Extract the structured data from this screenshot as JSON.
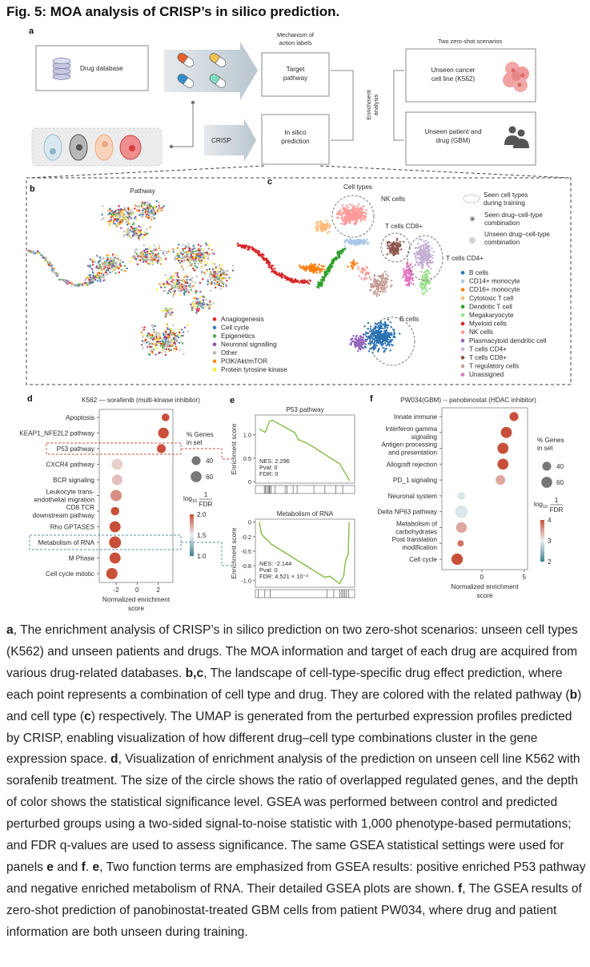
{
  "title": "Fig. 5: MOA analysis of CRISP’s in silico prediction.",
  "panel_a": {
    "label": "a",
    "drug_database": "Drug database",
    "moa_label": [
      "Mechanism of",
      "action labels"
    ],
    "target_pathway": [
      "Target",
      "pathway"
    ],
    "crisp": "CRISP",
    "in_silico": [
      "In silico",
      "prediction"
    ],
    "enrichment": [
      "Enrichment",
      "analysis"
    ],
    "scenarios_title": "Two zero-shot scenarios",
    "scenario_cell_line": [
      "Unseen cancer",
      "cell line (K562)"
    ],
    "scenario_patient": [
      "Unseen patient and",
      "drug (GBM)"
    ]
  },
  "panel_b": {
    "label": "b",
    "title": "Pathway",
    "legend": [
      {
        "label": "Anagiogenesis",
        "color": "#e02a26"
      },
      {
        "label": "Cell cycle",
        "color": "#3f7fbf"
      },
      {
        "label": "Epigenetics",
        "color": "#4fae4a"
      },
      {
        "label": "Neuronal signalling",
        "color": "#9550a8"
      },
      {
        "label": "Other",
        "color": "#bdbdbd"
      },
      {
        "label": "PI3K/Akt/mTOR",
        "color": "#ff8a12"
      },
      {
        "label": "Protein tyrosine kinase",
        "color": "#f7ea3a"
      }
    ]
  },
  "panel_c": {
    "label": "c",
    "title": "Cell types",
    "annotations": {
      "nk": "NK cells",
      "cd8": "T cells CD8+",
      "cd4": "T cells CD4+",
      "b": "B cells"
    },
    "marker_legend": {
      "seen_types": [
        "Seen cell types",
        "during training"
      ],
      "seen_combo": [
        "Seen drug–cell-type",
        "combination"
      ],
      "unseen_combo": [
        "Unseen drug–cell-type",
        "combination"
      ]
    },
    "legend": [
      {
        "label": "B cells",
        "color": "#2a73b2"
      },
      {
        "label": "CD14+ monocyte",
        "color": "#aec7e8"
      },
      {
        "label": "CD16+ monocyte",
        "color": "#ff7f0e"
      },
      {
        "label": "Cytotoxic T cell",
        "color": "#ffbb78"
      },
      {
        "label": "Dendritic T cell",
        "color": "#2ca02c"
      },
      {
        "label": "Megakaryocyte",
        "color": "#98df8a"
      },
      {
        "label": "Myeloid cells",
        "color": "#d62728"
      },
      {
        "label": "NK cells",
        "color": "#ff9896"
      },
      {
        "label": "Plasmacytoid dendritic cell",
        "color": "#9467bd"
      },
      {
        "label": "T cells CD4+",
        "color": "#c5b0d5"
      },
      {
        "label": "T cells CD8+",
        "color": "#8c564b"
      },
      {
        "label": "T regulatory cells",
        "color": "#c49c94"
      },
      {
        "label": "Unassigned",
        "color": "#e377c2"
      }
    ]
  },
  "chart_data": [
    {
      "id": "d",
      "panel_label": "d",
      "type": "scatter",
      "title": "K562 — sorafenib (multi-kinase inhibitor)",
      "xlabel": [
        "Normalized enrichment",
        "score"
      ],
      "xlim": [
        -3.6,
        3.4
      ],
      "xticks": [
        -2,
        0,
        2
      ],
      "size_legend_title": [
        "% Genes",
        "in set"
      ],
      "size_legend": [
        40,
        60
      ],
      "color_legend_title": "log10 1/FDR",
      "color_range": [
        1.0,
        2.0
      ],
      "color_ticks": [
        "2.0",
        "1.5",
        "1.0"
      ],
      "rows": [
        {
          "term": [
            "Apoptosis"
          ],
          "nes": 2.7,
          "pct_genes": 30,
          "log10_inv_fdr": 2.0
        },
        {
          "term": [
            "KEAP1_NFE2L2 pathway"
          ],
          "nes": 2.5,
          "pct_genes": 58,
          "log10_inv_fdr": 2.0
        },
        {
          "term": [
            "P53 pathway"
          ],
          "nes": 2.3,
          "pct_genes": 40,
          "log10_inv_fdr": 2.0
        },
        {
          "term": [
            "CXCR4 pathway"
          ],
          "nes": -1.9,
          "pct_genes": 62,
          "log10_inv_fdr": 1.6
        },
        {
          "term": [
            "BCR signaling"
          ],
          "nes": -1.9,
          "pct_genes": 56,
          "log10_inv_fdr": 1.65
        },
        {
          "term": [
            "Leukocyte trans-",
            "endothelial migration"
          ],
          "nes": -2.0,
          "pct_genes": 64,
          "log10_inv_fdr": 1.8
        },
        {
          "term": [
            "CD8 TCR",
            "downstream pathway"
          ],
          "nes": -2.1,
          "pct_genes": 36,
          "log10_inv_fdr": 2.0
        },
        {
          "term": [
            "Rho GPTASES"
          ],
          "nes": -2.1,
          "pct_genes": 62,
          "log10_inv_fdr": 2.0
        },
        {
          "term": [
            "Metabolism of RNA"
          ],
          "nes": -2.1,
          "pct_genes": 72,
          "log10_inv_fdr": 2.0
        },
        {
          "term": [
            "M Phase"
          ],
          "nes": -2.1,
          "pct_genes": 62,
          "log10_inv_fdr": 2.0
        },
        {
          "term": [
            "Cell cycle mitotic"
          ],
          "nes": -2.4,
          "pct_genes": 64,
          "log10_inv_fdr": 2.0
        }
      ]
    },
    {
      "id": "e1",
      "panel_label": "e",
      "type": "line",
      "title": "P53 pathway",
      "ylabel": "Enrichment score",
      "ylim": [
        -0.03,
        1.42
      ],
      "yticks": [
        {
          "value": 1.0,
          "label": "1.0"
        },
        {
          "value": 0.5,
          "label": "0.5"
        },
        {
          "value": 0,
          "label": "0"
        }
      ],
      "stats": [
        "NES: 2.296",
        "Pval: 0",
        "FDR: 0"
      ],
      "curve": [
        [
          0.04,
          1.12
        ],
        [
          0.1,
          1.05
        ],
        [
          0.14,
          1.28
        ],
        [
          0.17,
          1.31
        ],
        [
          0.4,
          1.04
        ],
        [
          0.43,
          0.9
        ],
        [
          0.52,
          0.82
        ],
        [
          0.6,
          0.72
        ],
        [
          0.7,
          0.58
        ],
        [
          0.76,
          0.5
        ],
        [
          0.85,
          0.38
        ],
        [
          0.88,
          0.27
        ],
        [
          0.95,
          0.02
        ]
      ],
      "hits": [
        0.09,
        0.1,
        0.115,
        0.13,
        0.14,
        0.145,
        0.16,
        0.2,
        0.3,
        0.32,
        0.38,
        0.42,
        0.59,
        0.7,
        0.81,
        0.88
      ]
    },
    {
      "id": "e2",
      "type": "line",
      "title": "Metabolism of RNA",
      "ylabel": "Enrichment score",
      "ylim": [
        -1.12,
        0.05
      ],
      "yticks": [
        {
          "value": 0,
          "label": "0"
        },
        {
          "value": -0.25,
          "label": "-0.2"
        },
        {
          "value": -0.5,
          "label": "-0.5"
        },
        {
          "value": -0.75,
          "label": "-0.8"
        },
        {
          "value": -1.0,
          "label": "-1.0"
        }
      ],
      "stats": [
        "NES: -2.144",
        "Pval: 0",
        "FDR: 4.521 × 10⁻³"
      ],
      "curve": [
        [
          0.04,
          0
        ],
        [
          0.06,
          -0.2
        ],
        [
          0.095,
          -0.27
        ],
        [
          0.135,
          -0.33
        ],
        [
          0.16,
          -0.38
        ],
        [
          0.7,
          -0.95
        ],
        [
          0.75,
          -0.93
        ],
        [
          0.85,
          -1.06
        ],
        [
          0.865,
          -1.0
        ],
        [
          0.89,
          -0.93
        ],
        [
          0.905,
          -0.7
        ],
        [
          0.92,
          -0.61
        ],
        [
          0.935,
          -0.56
        ],
        [
          0.945,
          0
        ]
      ],
      "hits": [
        0.03,
        0.095,
        0.15,
        0.72,
        0.79,
        0.85,
        0.87,
        0.885,
        0.9,
        0.915,
        0.94
      ]
    },
    {
      "id": "f",
      "panel_label": "f",
      "type": "scatter",
      "title": "PW034(GBM) -- panobinostat (HDAC inhibitor)",
      "xlabel": [
        "Normalized enrichment",
        "score"
      ],
      "xlim": [
        -4.7,
        5.4
      ],
      "xticks": [
        0,
        5
      ],
      "size_legend_title": [
        "% Genes",
        "in set"
      ],
      "size_legend": [
        40,
        60
      ],
      "color_legend_title": "log10 1/FDR",
      "color_range": [
        2,
        4
      ],
      "color_ticks": [
        "4",
        "3",
        "2"
      ],
      "rows": [
        {
          "term": [
            "Innate immune"
          ],
          "nes": 3.8,
          "pct_genes": 40,
          "log10_inv_fdr": 4.0
        },
        {
          "term": [
            "Interferon gamma",
            "signaling"
          ],
          "nes": 2.9,
          "pct_genes": 62,
          "log10_inv_fdr": 4.0
        },
        {
          "term": [
            "Antigen processing",
            "and presentation"
          ],
          "nes": 2.5,
          "pct_genes": 62,
          "log10_inv_fdr": 4.0
        },
        {
          "term": [
            "Allograft rejection"
          ],
          "nes": 2.5,
          "pct_genes": 60,
          "log10_inv_fdr": 4.0
        },
        {
          "term": [
            "PD_1 signaling"
          ],
          "nes": 2.2,
          "pct_genes": 46,
          "log10_inv_fdr": 3.45
        },
        {
          "term": [
            "Neuronal system"
          ],
          "nes": -2.4,
          "pct_genes": 30,
          "log10_inv_fdr": 2.9
        },
        {
          "term": [
            "Delta NP63 pathway"
          ],
          "nes": -2.4,
          "pct_genes": 80,
          "log10_inv_fdr": 2.9
        },
        {
          "term": [
            "Metabolism of",
            "carbohydrates"
          ],
          "nes": -2.4,
          "pct_genes": 58,
          "log10_inv_fdr": 3.45
        },
        {
          "term": [
            "Post translation",
            "modification"
          ],
          "nes": -2.5,
          "pct_genes": 20,
          "log10_inv_fdr": 3.8
        },
        {
          "term": [
            "Cell cycle"
          ],
          "nes": -2.9,
          "pct_genes": 66,
          "log10_inv_fdr": 4.0
        }
      ]
    }
  ],
  "caption": [
    {
      "text": "a",
      "bold": true
    },
    {
      "text": ", The enrichment analysis of CRISP’s in silico prediction on two zero-shot scenarios: unseen cell types (K562) and unseen patients and drugs. The MOA information and target of each drug are acquired from various drug-related databases. "
    },
    {
      "text": "b,c",
      "bold": true
    },
    {
      "text": ", The landscape of cell-type-specific drug effect prediction, where each point represents a combination of cell type and drug. They are colored with the related pathway ("
    },
    {
      "text": "b",
      "bold": true
    },
    {
      "text": ") and cell type ("
    },
    {
      "text": "c",
      "bold": true
    },
    {
      "text": ") respectively. The UMAP is generated from the perturbed expression profiles predicted by CRISP, enabling visualization of how different drug–cell type combinations cluster in the gene expression space. "
    },
    {
      "text": "d",
      "bold": true
    },
    {
      "text": ", Visualization of enrichment analysis of the prediction on unseen cell line K562 with sorafenib treatment. The size of the circle shows the ratio of overlapped regulated genes, and the depth of color shows the statistical significance level. GSEA was performed between control and predicted perturbed groups using a two-sided signal-to-noise statistic with 1,000 phenotype-based permutations; and FDR q-values are used to assess significance. The same GSEA statistical settings were used for panels "
    },
    {
      "text": "e",
      "bold": true
    },
    {
      "text": " and "
    },
    {
      "text": "f",
      "bold": true
    },
    {
      "text": ". "
    },
    {
      "text": "e",
      "bold": true
    },
    {
      "text": ", Two function terms are emphasized from GSEA results: positive enriched P53 pathway and negative enriched metabolism of RNA. Their detailed GSEA plots are shown. "
    },
    {
      "text": "f",
      "bold": true
    },
    {
      "text": ", The GSEA results of zero-shot prediction of panobinostat-treated GBM cells from patient PW034, where drug and patient information are both unseen during training."
    }
  ]
}
